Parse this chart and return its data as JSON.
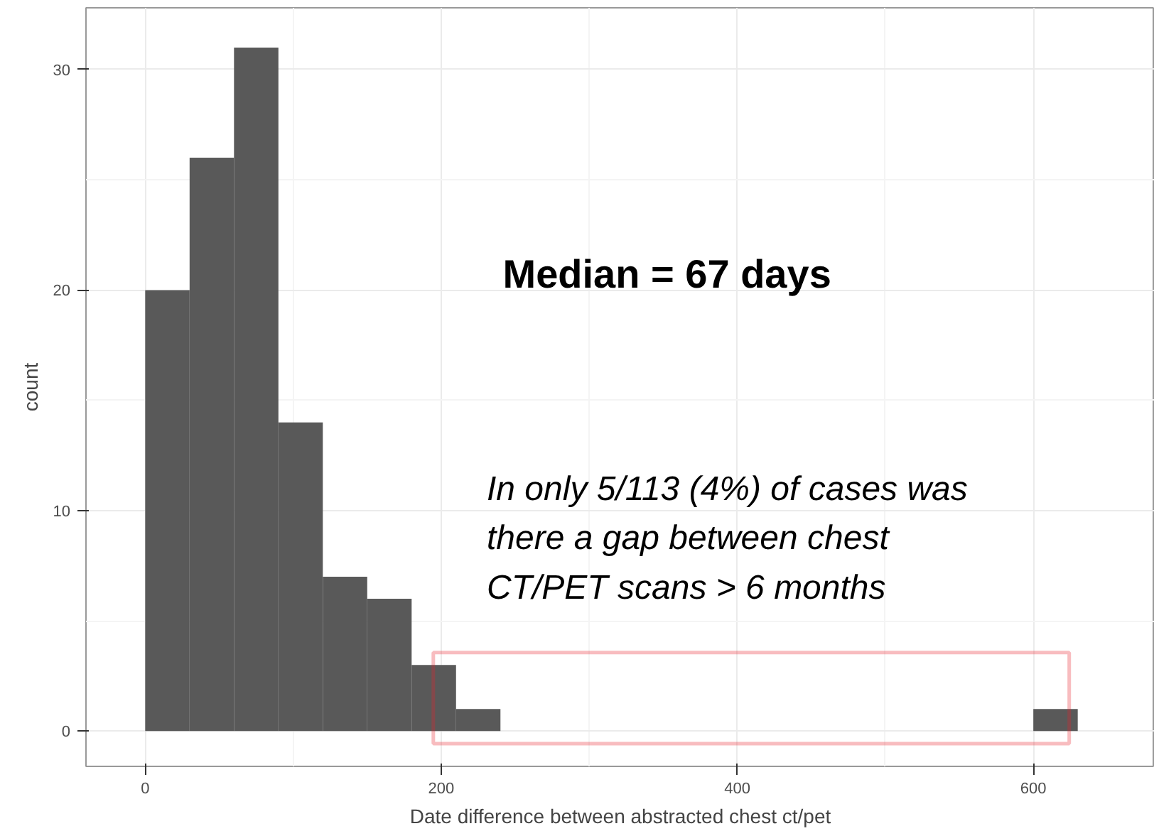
{
  "chart_data": {
    "type": "histogram",
    "xlabel": "Date difference between abstracted chest ct/pet",
    "ylabel": "count",
    "bins": [
      0,
      30,
      60,
      90,
      120,
      150,
      180,
      210,
      240,
      270,
      300,
      330,
      360,
      390,
      420,
      450,
      480,
      510,
      540,
      570,
      600,
      630
    ],
    "values": [
      20,
      26,
      31,
      14,
      7,
      6,
      3,
      1,
      0,
      0,
      0,
      0,
      0,
      0,
      0,
      0,
      0,
      0,
      0,
      0,
      1
    ],
    "color": "#595959",
    "xlim": [
      -40,
      682
    ],
    "ylim": [
      -1.6,
      32.8
    ],
    "xticks": [
      0,
      200,
      400,
      600
    ],
    "yticks": [
      0,
      10,
      20,
      30
    ],
    "grid": true,
    "annotations": [
      "Median = 67 days",
      "In only 5/113 (4%) of cases was there a gap between chest CT/PET scans > 6 months"
    ]
  }
}
